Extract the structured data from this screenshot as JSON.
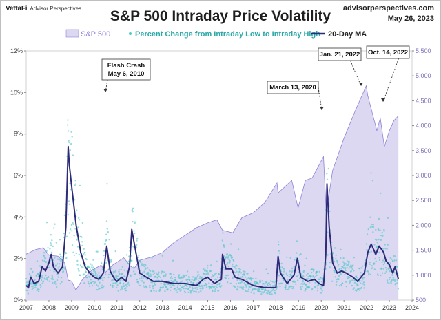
{
  "header": {
    "logo_brand": "VettaFi",
    "logo_sub": "Advisor Perspectives",
    "title": "S&P 500 Intraday Price Volatility",
    "site": "advisorperspectives.com",
    "date": "May 26, 2023"
  },
  "colors": {
    "area_fill": "#dcd8f2",
    "area_line": "#8c82d4",
    "dots": "#4fc6c6",
    "ma_line": "#2d2a7a",
    "left_axis": "#444444",
    "right_axis": "#7a6fb5"
  },
  "chart_data": {
    "type": "line",
    "title": "S&P 500 Intraday Price Volatility",
    "x_ticks": [
      "2007",
      "2008",
      "2009",
      "2010",
      "2011",
      "2012",
      "2013",
      "2014",
      "2015",
      "2016",
      "2017",
      "2018",
      "2019",
      "2020",
      "2021",
      "2022",
      "2023",
      "2024"
    ],
    "xlim": [
      2007,
      2024
    ],
    "y_left": {
      "label": "Percent Change from Intraday Low to Intraday High",
      "ylim": [
        0,
        12
      ],
      "ticks": [
        "0%",
        "2%",
        "4%",
        "6%",
        "8%",
        "10%",
        "12%"
      ]
    },
    "y_right": {
      "label": "S&P 500",
      "ylim": [
        500,
        5500
      ],
      "ticks": [
        "500",
        "1,000",
        "1,500",
        "2,000",
        "2,500",
        "3,000",
        "3,500",
        "4,000",
        "4,500",
        "5,000",
        "5,500"
      ]
    },
    "legend": [
      {
        "name": "S&P 500",
        "style": "area"
      },
      {
        "name": "Percent Change from Intraday Low to Intraday High",
        "style": "dots"
      },
      {
        "name": "20-Day MA",
        "style": "line"
      }
    ],
    "series": [
      {
        "name": "S&P 500",
        "axis": "right",
        "x": [
          2007.0,
          2007.4,
          2007.75,
          2008.0,
          2008.4,
          2008.7,
          2008.85,
          2009.0,
          2009.19,
          2009.5,
          2009.9,
          2010.3,
          2010.5,
          2010.8,
          2011.3,
          2011.6,
          2011.75,
          2012.0,
          2012.5,
          2013.0,
          2013.5,
          2014.0,
          2014.5,
          2015.0,
          2015.4,
          2015.65,
          2016.1,
          2016.5,
          2017.0,
          2017.5,
          2018.05,
          2018.1,
          2018.7,
          2018.98,
          2019.3,
          2019.6,
          2020.1,
          2020.22,
          2020.5,
          2021.0,
          2021.5,
          2021.98,
          2022.05,
          2022.45,
          2022.6,
          2022.78,
          2023.0,
          2023.2,
          2023.4
        ],
        "values": [
          1420,
          1510,
          1550,
          1400,
          1380,
          1250,
          900,
          880,
          700,
          930,
          1100,
          1200,
          1060,
          1200,
          1350,
          1180,
          1130,
          1300,
          1360,
          1450,
          1650,
          1800,
          1950,
          2050,
          2110,
          1900,
          1850,
          2150,
          2250,
          2450,
          2850,
          2650,
          2900,
          2350,
          2900,
          2950,
          3380,
          2240,
          3100,
          3750,
          4300,
          4800,
          4600,
          3900,
          4150,
          3580,
          3900,
          4100,
          4200
        ]
      },
      {
        "name": "20-Day MA",
        "axis": "left",
        "x": [
          2007.0,
          2007.1,
          2007.2,
          2007.35,
          2007.55,
          2007.7,
          2007.85,
          2008.0,
          2008.1,
          2008.2,
          2008.4,
          2008.6,
          2008.75,
          2008.85,
          2008.9,
          2009.0,
          2009.2,
          2009.4,
          2009.6,
          2009.8,
          2010.0,
          2010.2,
          2010.4,
          2010.55,
          2010.7,
          2010.9,
          2011.0,
          2011.2,
          2011.4,
          2011.55,
          2011.65,
          2011.8,
          2012.0,
          2012.3,
          2012.6,
          2013.0,
          2013.5,
          2014.0,
          2014.5,
          2014.8,
          2015.0,
          2015.3,
          2015.6,
          2015.65,
          2015.8,
          2016.05,
          2016.2,
          2016.5,
          2017.0,
          2017.5,
          2018.0,
          2018.1,
          2018.2,
          2018.5,
          2018.8,
          2018.95,
          2019.1,
          2019.4,
          2019.7,
          2019.9,
          2020.1,
          2020.2,
          2020.25,
          2020.35,
          2020.5,
          2020.7,
          2020.9,
          2021.1,
          2021.4,
          2021.6,
          2021.9,
          2022.05,
          2022.2,
          2022.4,
          2022.55,
          2022.75,
          2022.85,
          2023.0,
          2023.15,
          2023.25,
          2023.4
        ],
        "values": [
          0.7,
          0.6,
          1.1,
          0.8,
          0.9,
          1.6,
          1.4,
          1.8,
          2.2,
          1.6,
          1.3,
          1.6,
          3.5,
          7.4,
          6.5,
          5.5,
          3.6,
          2.3,
          1.6,
          1.3,
          1.1,
          1.0,
          1.3,
          2.6,
          1.4,
          1.0,
          0.9,
          1.1,
          0.9,
          1.6,
          3.4,
          2.5,
          1.3,
          1.1,
          0.9,
          0.9,
          0.8,
          0.8,
          0.7,
          1.0,
          1.1,
          0.8,
          1.0,
          2.2,
          1.5,
          1.5,
          1.1,
          1.0,
          0.7,
          0.6,
          0.6,
          2.1,
          1.3,
          0.8,
          1.2,
          2.0,
          1.1,
          0.9,
          1.0,
          0.8,
          0.7,
          2.2,
          5.6,
          3.5,
          1.8,
          1.3,
          1.4,
          1.3,
          1.1,
          0.9,
          1.3,
          2.3,
          2.7,
          2.2,
          2.6,
          2.3,
          1.9,
          1.7,
          1.3,
          1.6,
          1.0
        ]
      }
    ],
    "annotations": [
      {
        "text": [
          "Flash Crash",
          "May 6, 2010"
        ],
        "x": 2010.35,
        "y": 9.7
      },
      {
        "text": [
          "March 13, 2020"
        ],
        "x": 2020.2,
        "y": 8.8
      },
      {
        "text": [
          "Jan. 21, 2022"
        ],
        "x": 2021.9,
        "y": 10.3
      },
      {
        "text": [
          "Oct. 14, 2022"
        ],
        "x": 2022.78,
        "y": 9.3
      }
    ]
  }
}
